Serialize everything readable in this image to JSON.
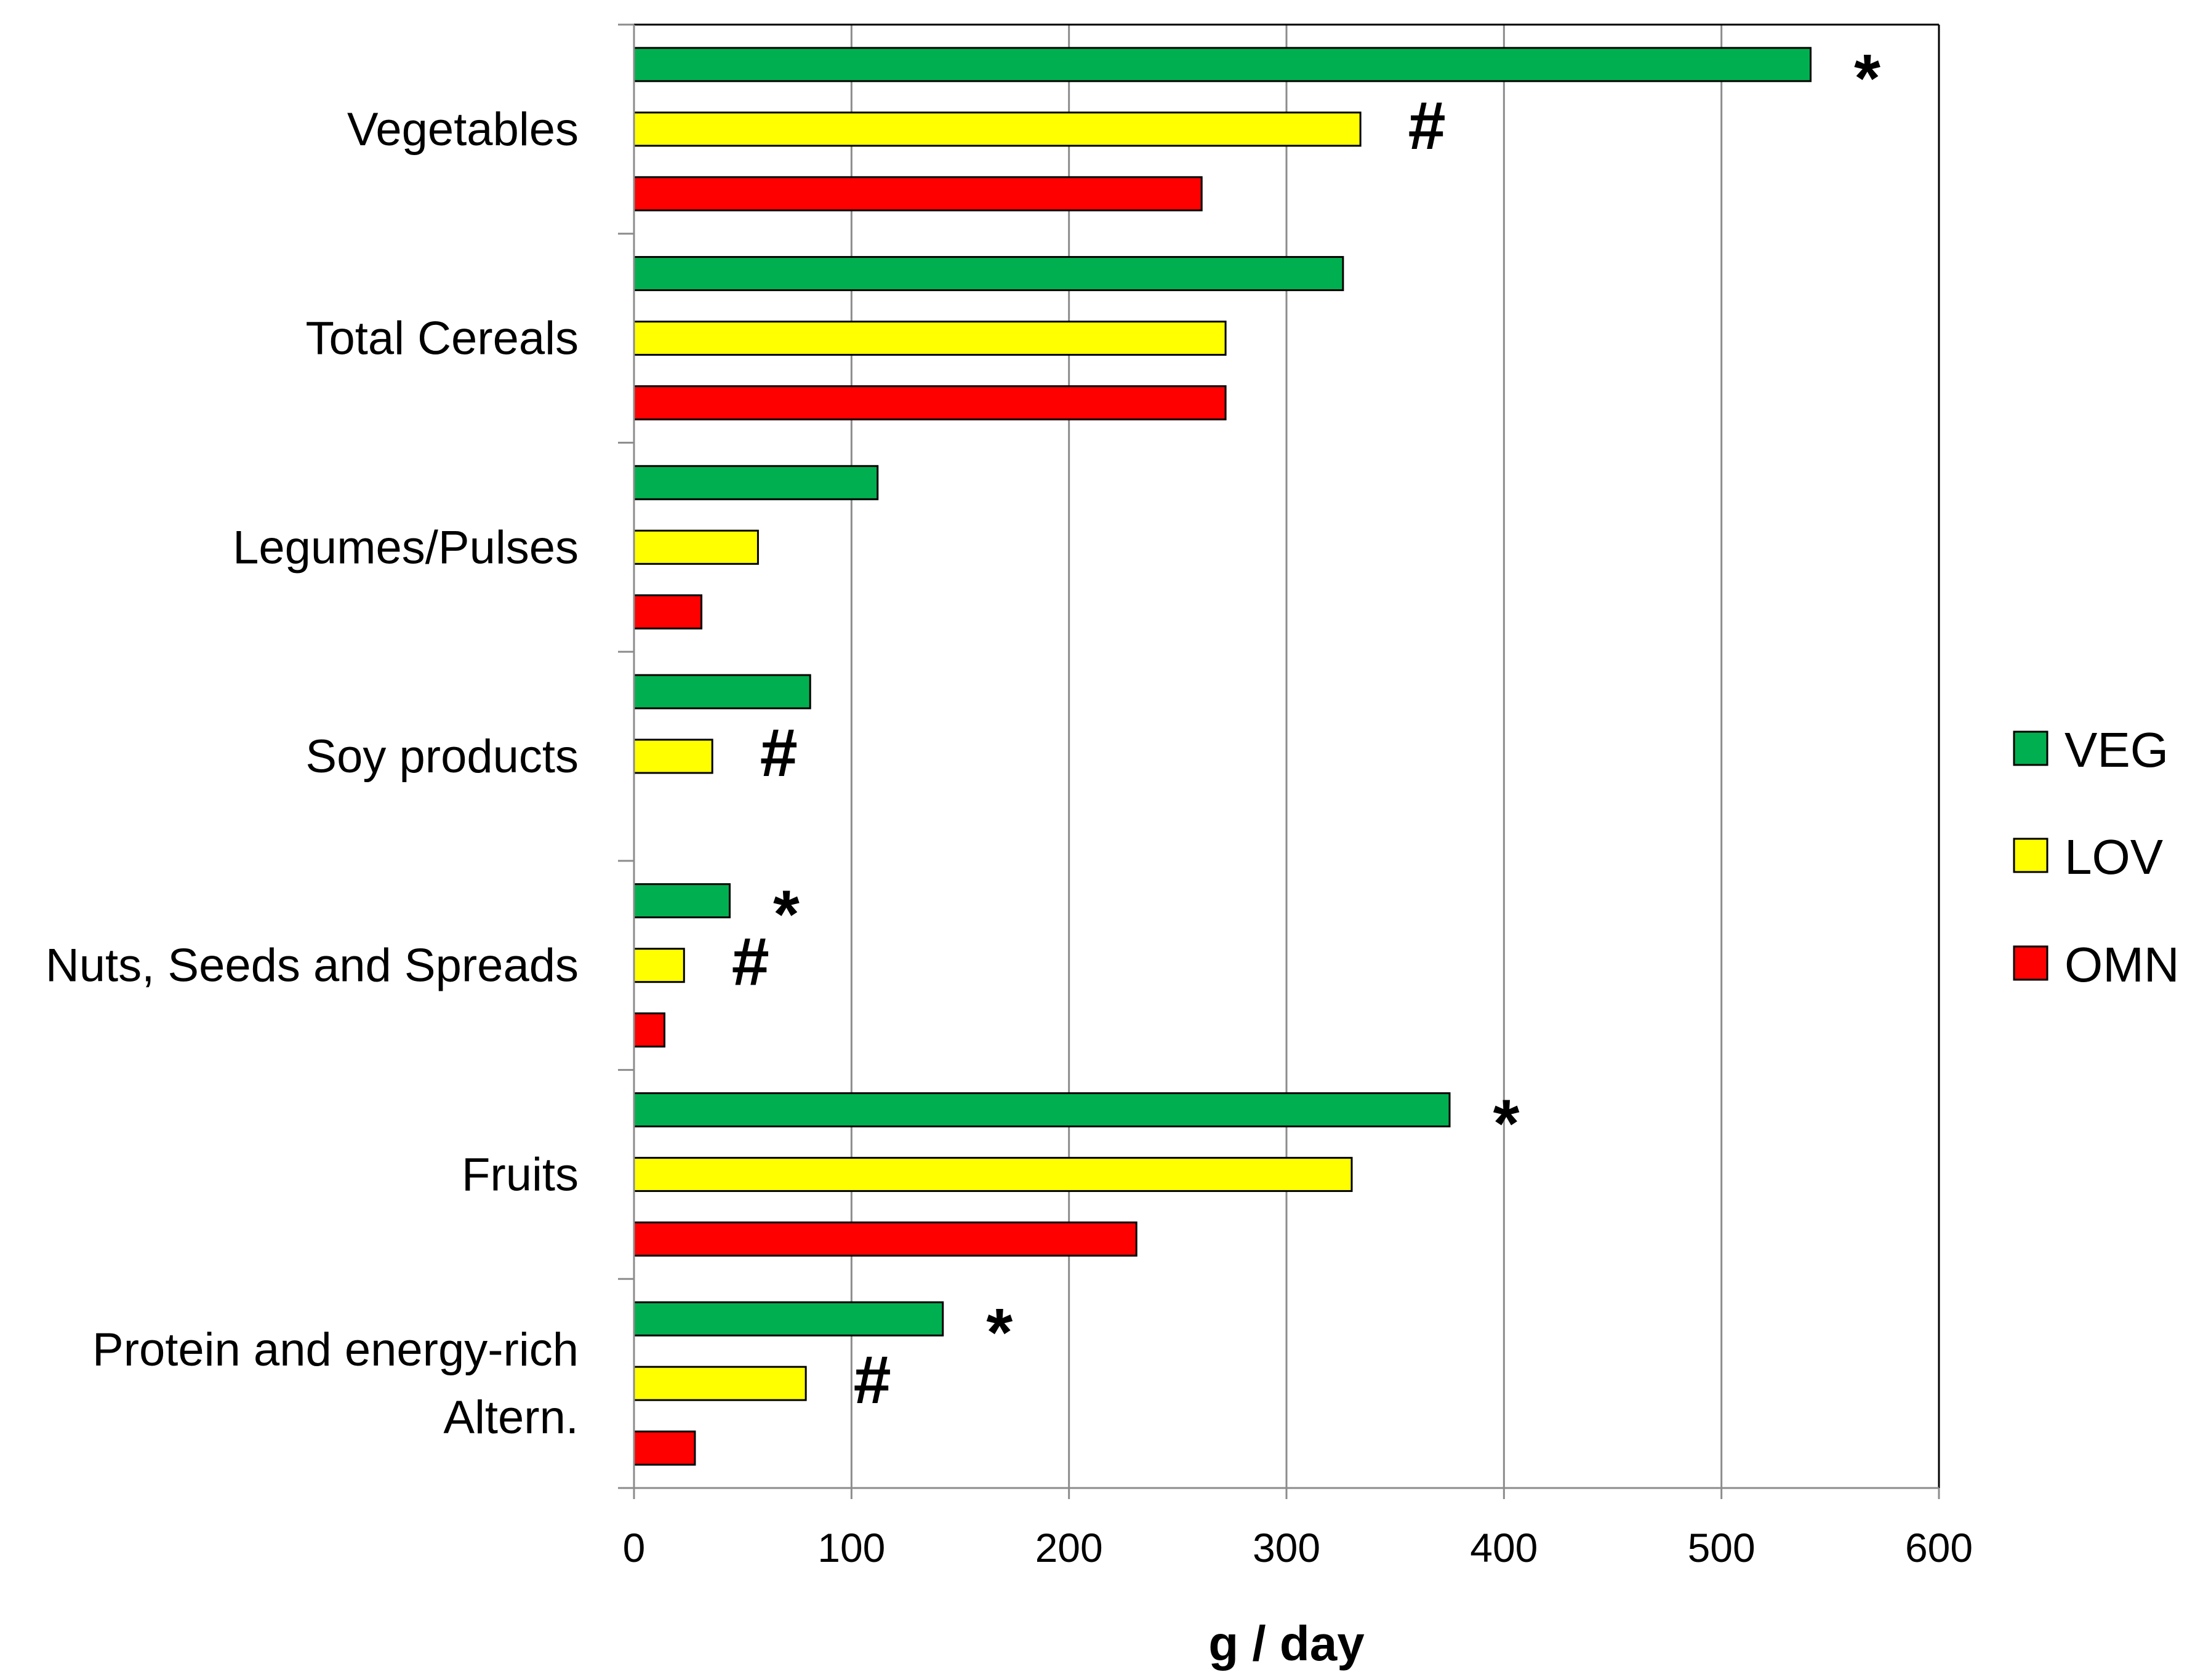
{
  "chart_data": {
    "type": "bar",
    "orientation": "horizontal",
    "title": "",
    "xlabel": "g / day",
    "ylabel": "",
    "xlim": [
      0,
      600
    ],
    "xticks": [
      "0",
      "100",
      "200",
      "300",
      "400",
      "500",
      "600"
    ],
    "grid": "vertical",
    "legend_position": "right",
    "categories": [
      {
        "lines": [
          "Vegetables"
        ]
      },
      {
        "lines": [
          "Total Cereals"
        ]
      },
      {
        "lines": [
          "Legumes/Pulses"
        ]
      },
      {
        "lines": [
          "Soy products"
        ]
      },
      {
        "lines": [
          "Nuts, Seeds and Spreads"
        ]
      },
      {
        "lines": [
          "Fruits"
        ]
      },
      {
        "lines": [
          "Protein and energy-rich",
          "Altern."
        ]
      }
    ],
    "series": [
      {
        "name": "VEG",
        "color": "#00b050",
        "values": [
          541,
          326,
          112,
          81,
          44,
          375,
          142
        ]
      },
      {
        "name": "LOV",
        "color": "#ffff00",
        "values": [
          334,
          272,
          57,
          36,
          23,
          330,
          79
        ]
      },
      {
        "name": "OMN",
        "color": "#ff0000",
        "values": [
          261,
          272,
          31,
          null,
          14,
          231,
          28
        ]
      }
    ],
    "annotations": [
      {
        "category": 0,
        "series": 0,
        "text": "*"
      },
      {
        "category": 0,
        "series": 1,
        "text": "#"
      },
      {
        "category": 3,
        "series": 1,
        "text": "#"
      },
      {
        "category": 4,
        "series": 0,
        "text": "*"
      },
      {
        "category": 4,
        "series": 1,
        "text": "#"
      },
      {
        "category": 5,
        "series": 0,
        "text": "*"
      },
      {
        "category": 6,
        "series": 0,
        "text": "*"
      },
      {
        "category": 6,
        "series": 1,
        "text": "#"
      }
    ]
  }
}
